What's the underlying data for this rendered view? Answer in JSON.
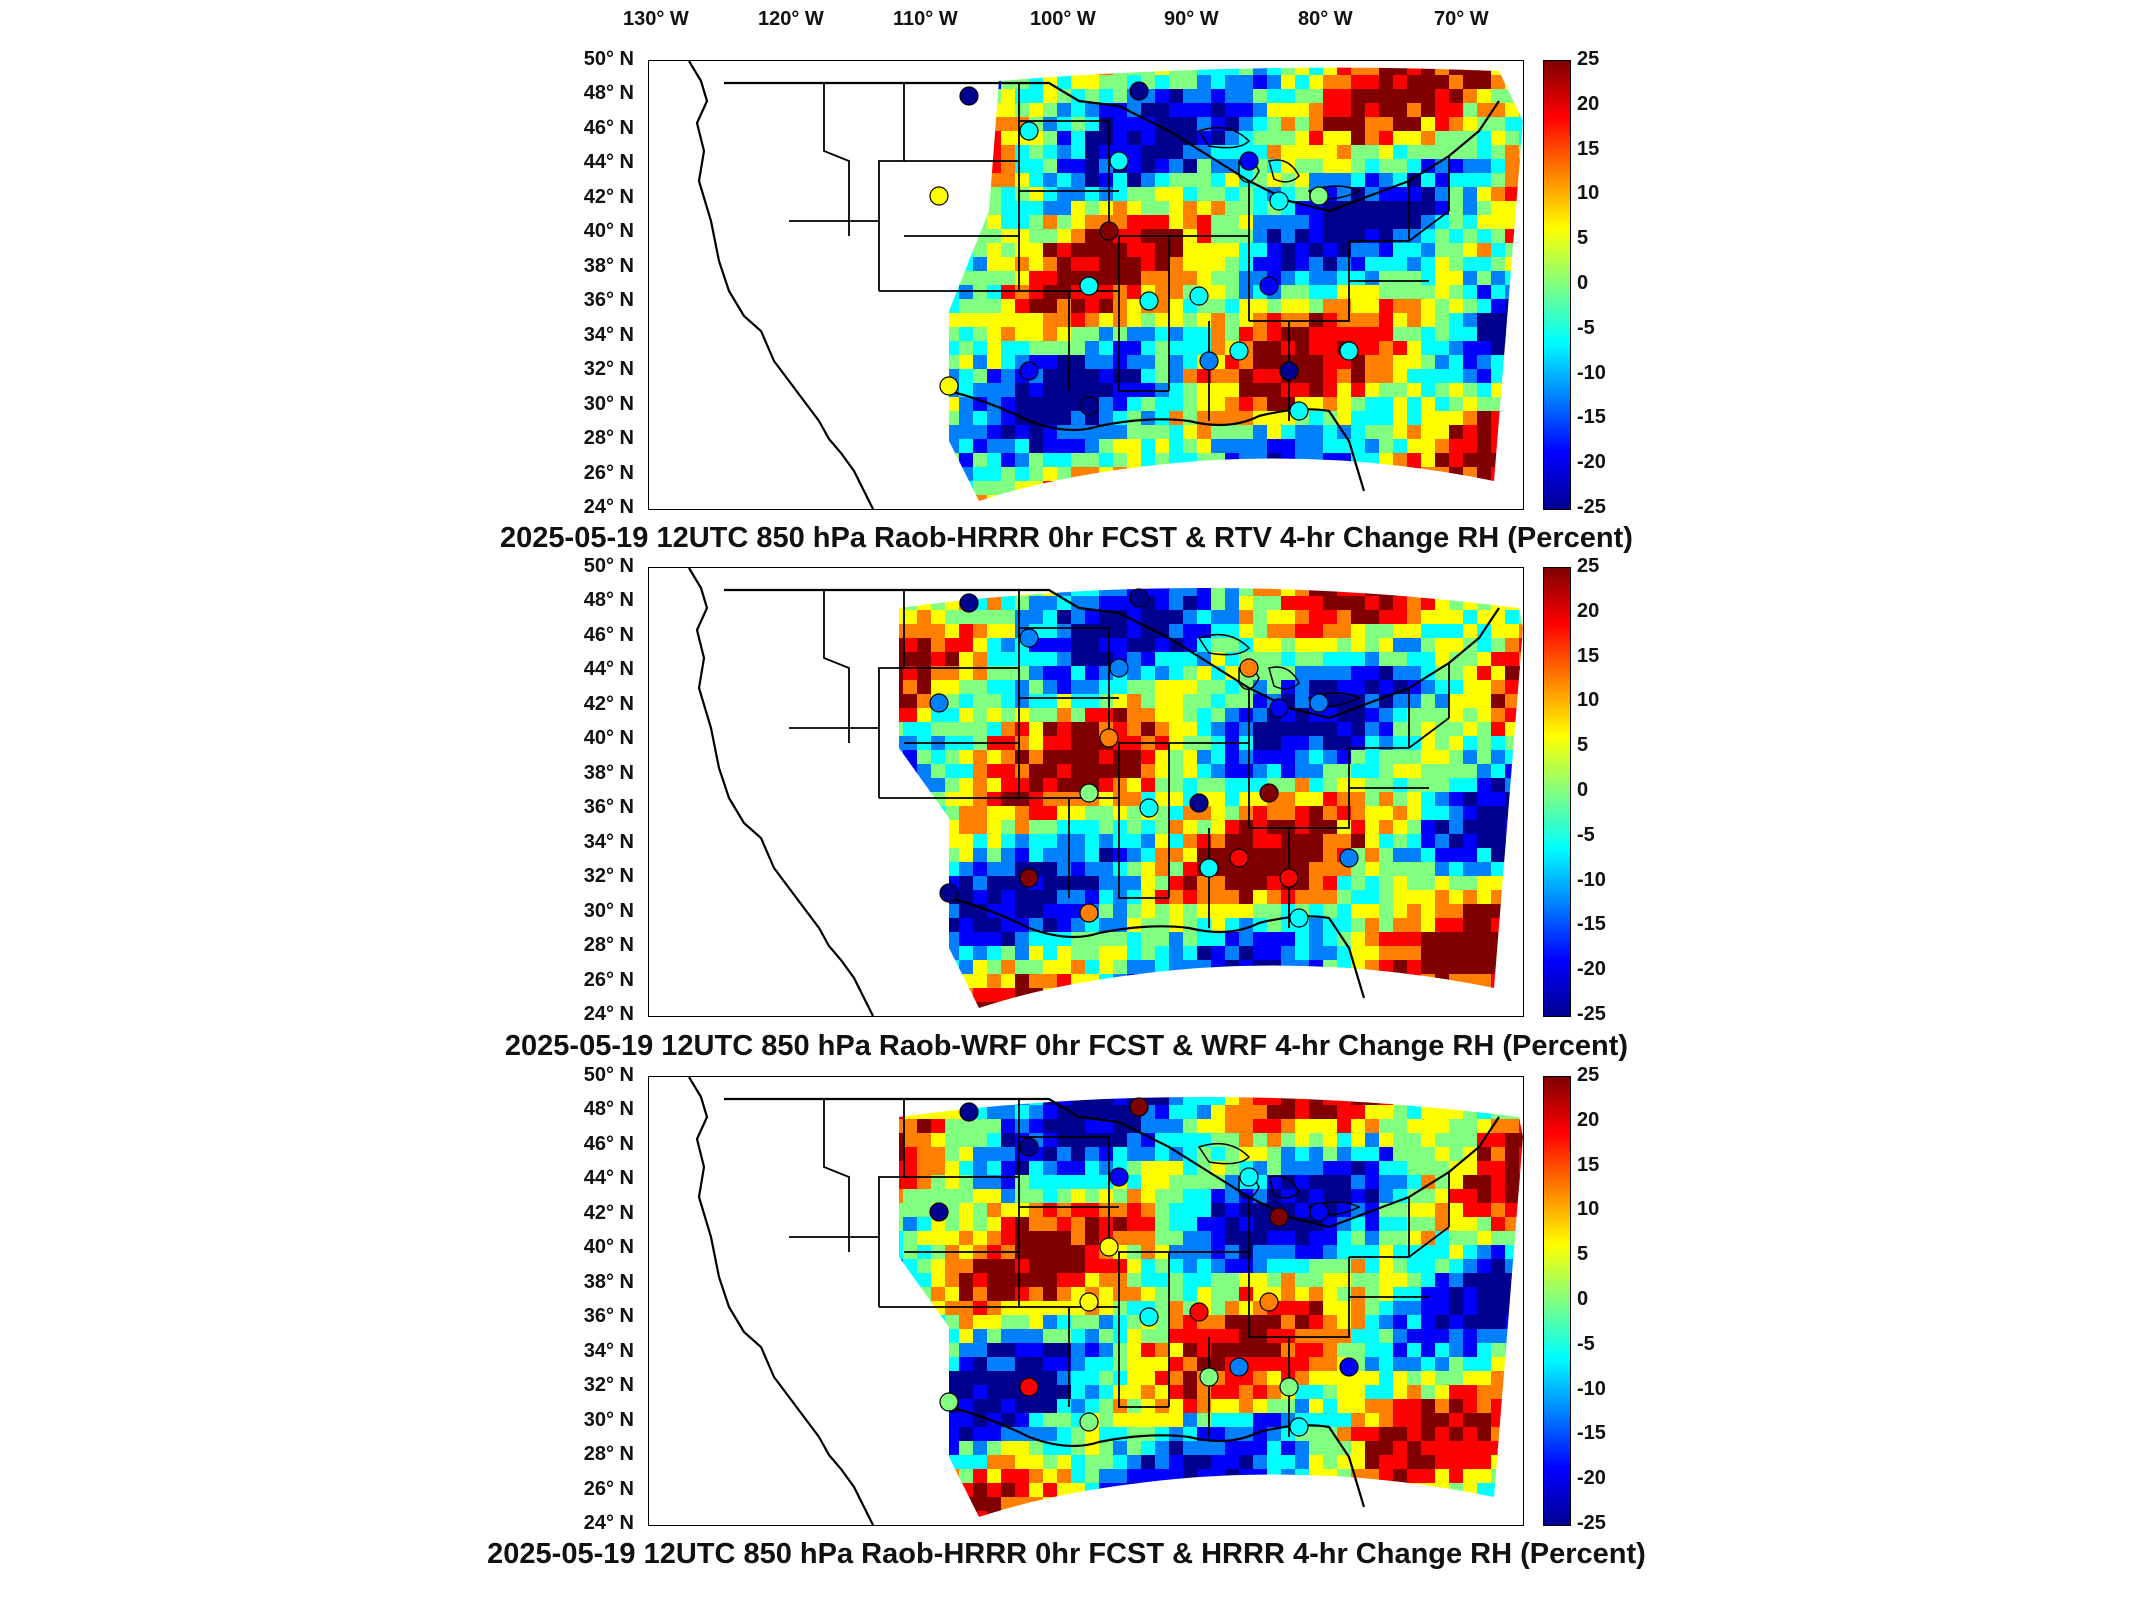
{
  "longitude_labels": [
    "130° W",
    "120° W",
    "110° W",
    "100° W",
    "90° W",
    "80° W",
    "70° W"
  ],
  "latitude_labels": [
    "50° N",
    "48° N",
    "46° N",
    "44° N",
    "42° N",
    "40° N",
    "38° N",
    "36° N",
    "34° N",
    "32° N",
    "30° N",
    "28° N",
    "26° N",
    "24° N"
  ],
  "colorbar": {
    "ticks": [
      "25",
      "20",
      "15",
      "10",
      "5",
      "0",
      "-5",
      "-10",
      "-15",
      "-20",
      "-25"
    ],
    "colors": [
      "#00008f",
      "#0000ff",
      "#0080ff",
      "#00ffff",
      "#80ff80",
      "#ffff00",
      "#ff8000",
      "#ff0000",
      "#800000"
    ]
  },
  "panels": [
    {
      "title": "2025-05-19 12UTC 850 hPa Raob-HRRR 0hr FCST & RTV 4-hr Change RH (Percent)"
    },
    {
      "title": "2025-05-19 12UTC 850 hPa Raob-WRF 0hr FCST & WRF 4-hr Change RH (Percent)"
    },
    {
      "title": "2025-05-19 12UTC 850 hPa Raob-HRRR 0hr FCST & HRRR 4-hr Change RH (Percent)"
    }
  ]
}
